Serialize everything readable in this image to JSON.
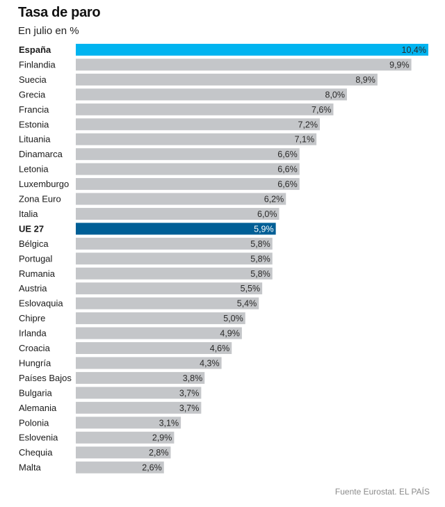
{
  "chart_data": {
    "type": "bar",
    "orientation": "horizontal",
    "title": "Tasa de paro",
    "subtitle": "En julio en %",
    "categories": [
      "España",
      "Finlandia",
      "Suecia",
      "Grecia",
      "Francia",
      "Estonia",
      "Lituania",
      "Dinamarca",
      "Letonia",
      "Luxemburgo",
      "Zona Euro",
      "Italia",
      "UE 27",
      "Bélgica",
      "Portugal",
      "Rumania",
      "Austria",
      "Eslovaquia",
      "Chipre",
      "Irlanda",
      "Croacia",
      "Hungría",
      "Países Bajos",
      "Bulgaria",
      "Alemania",
      "Polonia",
      "Eslovenia",
      "Chequia",
      "Malta"
    ],
    "values": [
      10.4,
      9.9,
      8.9,
      8.0,
      7.6,
      7.2,
      7.1,
      6.6,
      6.6,
      6.6,
      6.2,
      6.0,
      5.9,
      5.8,
      5.8,
      5.8,
      5.5,
      5.4,
      5.0,
      4.9,
      4.6,
      4.3,
      3.8,
      3.7,
      3.7,
      3.1,
      2.9,
      2.8,
      2.6
    ],
    "value_labels": [
      "10,4%",
      "9,9%",
      "8,9%",
      "8,0%",
      "7,6%",
      "7,2%",
      "7,1%",
      "6,6%",
      "6,6%",
      "6,6%",
      "6,2%",
      "6,0%",
      "5,9%",
      "5,8%",
      "5,8%",
      "5,8%",
      "5,5%",
      "5,4%",
      "5,0%",
      "4,9%",
      "4,6%",
      "4,3%",
      "3,8%",
      "3,7%",
      "3,7%",
      "3,1%",
      "2,9%",
      "2,8%",
      "2,6%"
    ],
    "highlight": {
      "España": "#00b4f0",
      "UE 27": "#005f96"
    },
    "bold_categories": [
      "España",
      "UE 27"
    ],
    "default_color": "#c4c6c9",
    "xlim": [
      0,
      10.4
    ],
    "grid": false,
    "source": "Fuente Eurostat. EL PAÍS"
  }
}
